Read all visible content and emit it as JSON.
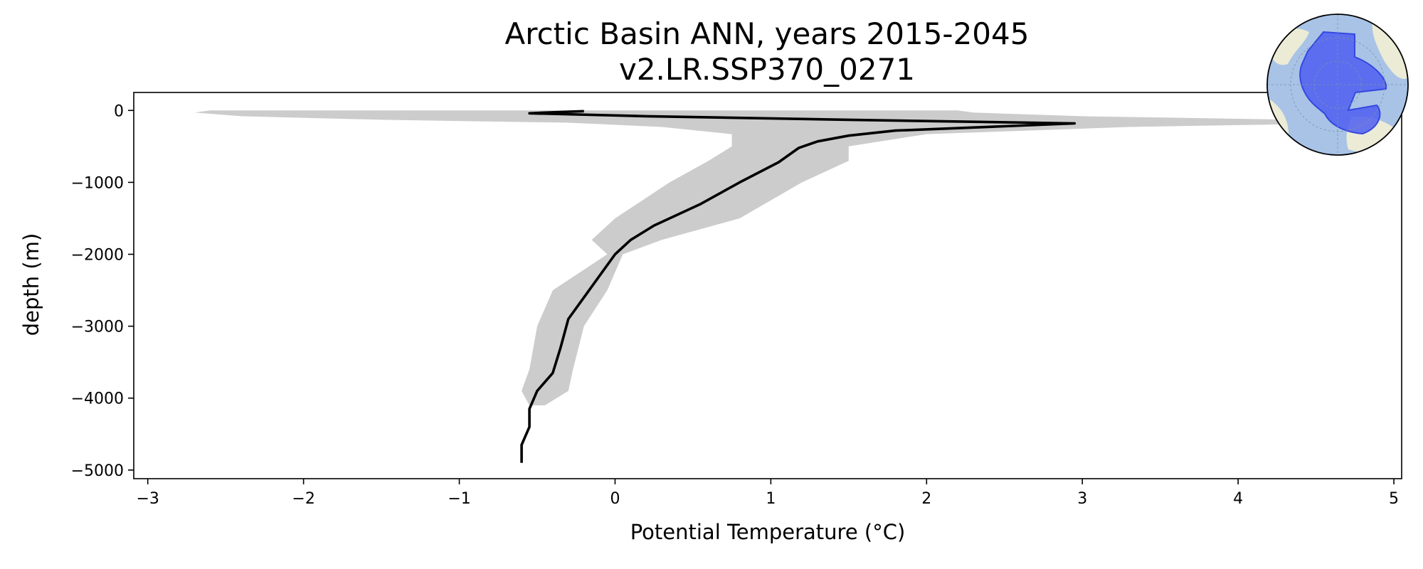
{
  "chart_data": {
    "type": "line",
    "title": "Arctic Basin ANN, years 2015-2045",
    "subtitle": "v2.LR.SSP370_0271",
    "xlabel": "Potential Temperature (°C)",
    "ylabel": "depth (m)",
    "xlim": [
      -3.09,
      5.05
    ],
    "ylim": [
      -5120,
      250
    ],
    "xticks": [
      -3,
      -2,
      -1,
      0,
      1,
      2,
      3,
      4,
      5
    ],
    "xtick_labels": [
      "−3",
      "−2",
      "−1",
      "0",
      "1",
      "2",
      "3",
      "4",
      "5"
    ],
    "yticks": [
      0,
      -1000,
      -2000,
      -3000,
      -4000,
      -5000
    ],
    "ytick_labels": [
      "0",
      "−1000",
      "−2000",
      "−3000",
      "−4000",
      "−5000"
    ],
    "grid": false,
    "colors": {
      "mean_line": "#000000",
      "range_band": "#cccccc",
      "region_fill": "#4f5ff0",
      "ocean": "#9ab8e0",
      "land": "#ecebd6"
    },
    "series": [
      {
        "role": "mean profile",
        "points": [
          {
            "depth": -10,
            "temp": -0.2
          },
          {
            "depth": -30,
            "temp": -0.45
          },
          {
            "depth": -40,
            "temp": -0.55
          },
          {
            "depth": -80,
            "temp": 0.2
          },
          {
            "depth": -130,
            "temp": 1.5
          },
          {
            "depth": -180,
            "temp": 2.95
          },
          {
            "depth": -220,
            "temp": 2.5
          },
          {
            "depth": -280,
            "temp": 1.8
          },
          {
            "depth": -350,
            "temp": 1.5
          },
          {
            "depth": -430,
            "temp": 1.3
          },
          {
            "depth": -520,
            "temp": 1.18
          },
          {
            "depth": -720,
            "temp": 1.05
          },
          {
            "depth": -1000,
            "temp": 0.8
          },
          {
            "depth": -1300,
            "temp": 0.55
          },
          {
            "depth": -1600,
            "temp": 0.25
          },
          {
            "depth": -1800,
            "temp": 0.1
          },
          {
            "depth": -2000,
            "temp": 0.0
          },
          {
            "depth": -2300,
            "temp": -0.1
          },
          {
            "depth": -2600,
            "temp": -0.2
          },
          {
            "depth": -2900,
            "temp": -0.3
          },
          {
            "depth": -3300,
            "temp": -0.35
          },
          {
            "depth": -3650,
            "temp": -0.4
          },
          {
            "depth": -3900,
            "temp": -0.5
          },
          {
            "depth": -4150,
            "temp": -0.55
          },
          {
            "depth": -4400,
            "temp": -0.55
          },
          {
            "depth": -4650,
            "temp": -0.6
          },
          {
            "depth": -4900,
            "temp": -0.6
          }
        ]
      },
      {
        "role": "range band",
        "points": [
          {
            "depth": 0,
            "min": -2.6,
            "max": 2.2
          },
          {
            "depth": -30,
            "min": -2.7,
            "max": 2.3
          },
          {
            "depth": -80,
            "min": -2.4,
            "max": 3.0
          },
          {
            "depth": -130,
            "min": -1.5,
            "max": 4.4
          },
          {
            "depth": -170,
            "min": -0.3,
            "max": 4.9
          },
          {
            "depth": -230,
            "min": 0.3,
            "max": 3.3
          },
          {
            "depth": -330,
            "min": 0.75,
            "max": 2.0
          },
          {
            "depth": -500,
            "min": 0.75,
            "max": 1.5
          },
          {
            "depth": -700,
            "min": 0.6,
            "max": 1.5
          },
          {
            "depth": -1000,
            "min": 0.35,
            "max": 1.2
          },
          {
            "depth": -1500,
            "min": 0.0,
            "max": 0.8
          },
          {
            "depth": -1800,
            "min": -0.15,
            "max": 0.3
          },
          {
            "depth": -2000,
            "min": -0.05,
            "max": 0.05
          },
          {
            "depth": -2500,
            "min": -0.4,
            "max": -0.05
          },
          {
            "depth": -3000,
            "min": -0.5,
            "max": -0.2
          },
          {
            "depth": -3600,
            "min": -0.55,
            "max": -0.27
          },
          {
            "depth": -3900,
            "min": -0.6,
            "max": -0.3
          },
          {
            "depth": -4100,
            "min": -0.55,
            "max": -0.45
          }
        ]
      }
    ],
    "inset": "polar map of the Arctic with the Arctic Basin region shaded in blue"
  }
}
